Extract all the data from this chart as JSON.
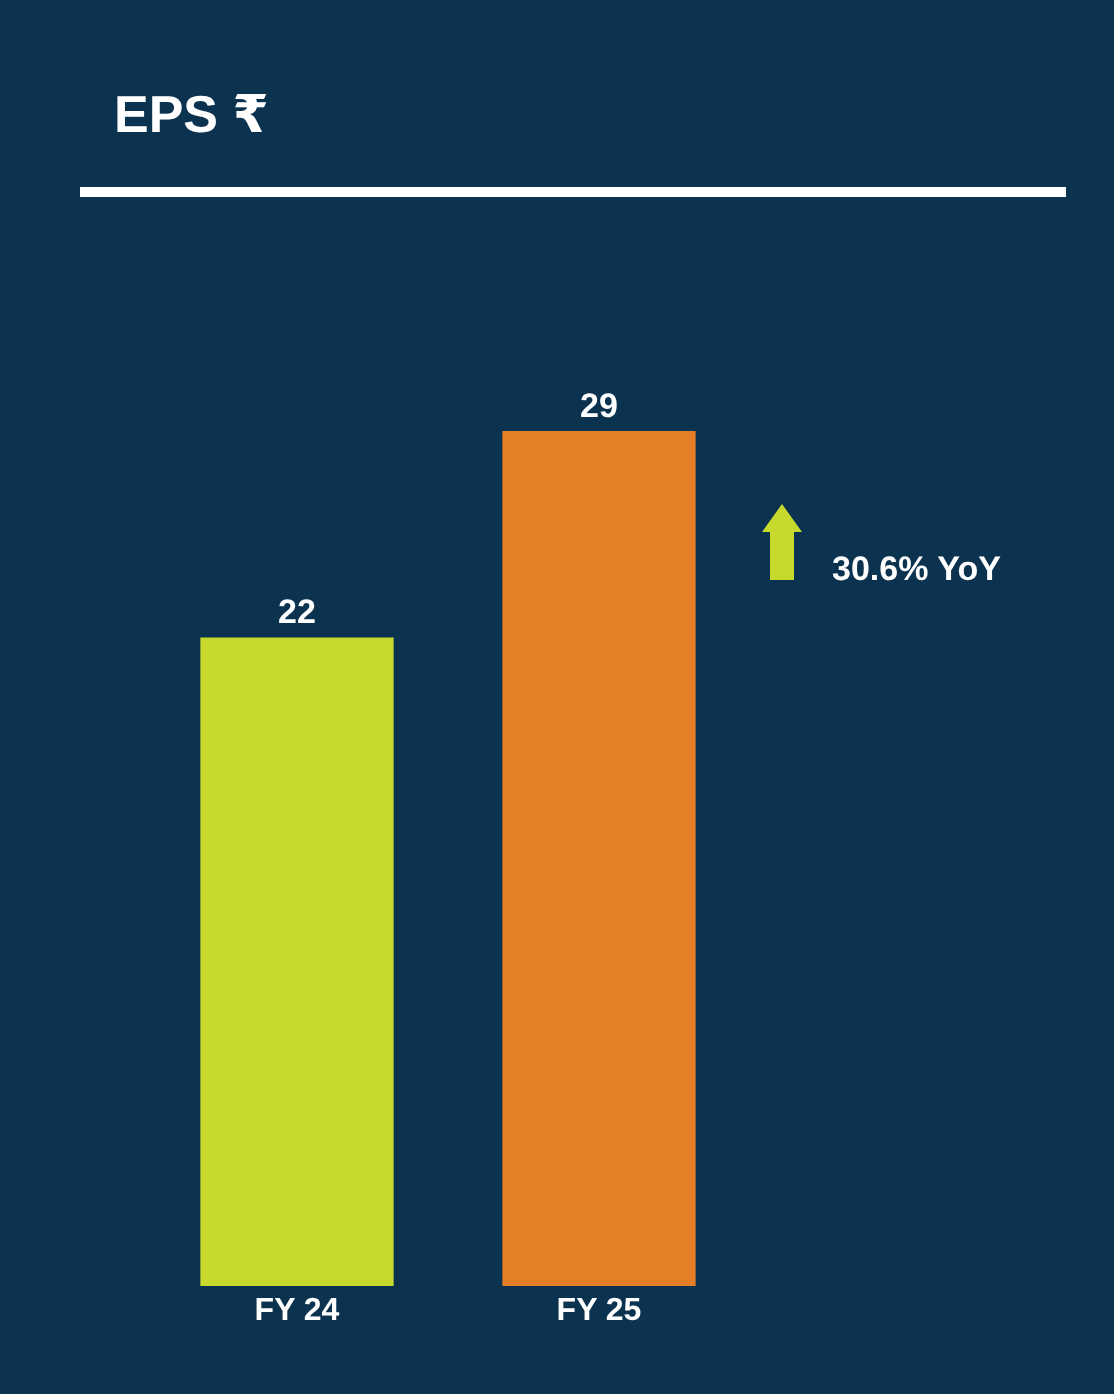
{
  "chart_data": {
    "type": "bar",
    "title": "EPS ₹",
    "categories": [
      "FY 24",
      "FY 25"
    ],
    "values": [
      22,
      29
    ],
    "colors": [
      "#c8d92e",
      "#e57f25"
    ],
    "data_labels": true,
    "grid": false,
    "annotations": [
      "30.6% YoY"
    ]
  }
}
